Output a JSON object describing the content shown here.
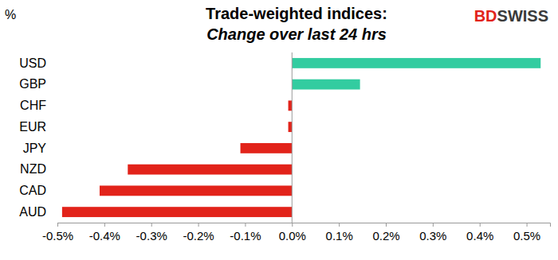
{
  "chart_data": {
    "type": "bar",
    "orientation": "horizontal",
    "title": "Trade-weighted indices:",
    "subtitle": "Change over last 24 hrs",
    "xlabel": "%",
    "annotations": [
      "BDSWISS"
    ],
    "categories": [
      "USD",
      "GBP",
      "CHF",
      "EUR",
      "JPY",
      "NZD",
      "CAD",
      "AUD"
    ],
    "values": [
      0.53,
      0.145,
      -0.008,
      -0.008,
      -0.11,
      -0.35,
      -0.41,
      -0.49
    ],
    "colors": [
      "#33cca0",
      "#33cca0",
      "#e2231a",
      "#e2231a",
      "#e2231a",
      "#e2231a",
      "#e2231a",
      "#e2231a"
    ],
    "xlim": [
      -0.5,
      0.55
    ],
    "xticks": [
      {
        "value": -0.5,
        "label": "-0.5%"
      },
      {
        "value": -0.4,
        "label": "-0.4%"
      },
      {
        "value": -0.3,
        "label": "-0.3%"
      },
      {
        "value": -0.2,
        "label": "-0.2%"
      },
      {
        "value": -0.1,
        "label": "-0.1%"
      },
      {
        "value": 0,
        "label": "0.0%"
      },
      {
        "value": 0.1,
        "label": "0.1%"
      },
      {
        "value": 0.2,
        "label": "0.2%"
      },
      {
        "value": 0.3,
        "label": "0.3%"
      },
      {
        "value": 0.4,
        "label": "0.4%"
      },
      {
        "value": 0.5,
        "label": "0.5%"
      }
    ],
    "grid": false
  }
}
